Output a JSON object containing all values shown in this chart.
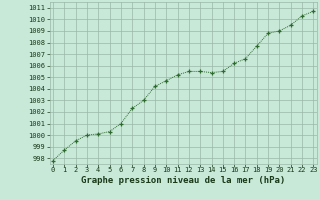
{
  "x": [
    0,
    1,
    2,
    3,
    4,
    5,
    6,
    7,
    8,
    9,
    10,
    11,
    12,
    13,
    14,
    15,
    16,
    17,
    18,
    19,
    20,
    21,
    22,
    23
  ],
  "y": [
    997.8,
    998.7,
    999.5,
    1000.0,
    1000.1,
    1000.3,
    1001.0,
    1002.3,
    1003.0,
    1004.2,
    1004.7,
    1005.2,
    1005.5,
    1005.5,
    1005.4,
    1005.5,
    1006.2,
    1006.6,
    1007.7,
    1008.8,
    1009.0,
    1009.5,
    1010.3,
    1010.7
  ],
  "xlim": [
    -0.3,
    23.3
  ],
  "ylim": [
    997.5,
    1011.5
  ],
  "yticks": [
    998,
    999,
    1000,
    1001,
    1002,
    1003,
    1004,
    1005,
    1006,
    1007,
    1008,
    1009,
    1010,
    1011
  ],
  "xticks": [
    0,
    1,
    2,
    3,
    4,
    5,
    6,
    7,
    8,
    9,
    10,
    11,
    12,
    13,
    14,
    15,
    16,
    17,
    18,
    19,
    20,
    21,
    22,
    23
  ],
  "line_color": "#2d6a2d",
  "marker": "+",
  "bg_color": "#c8e8d8",
  "grid_color": "#9ab8a8",
  "xlabel": "Graphe pression niveau de la mer (hPa)",
  "xlabel_color": "#1a3a1a",
  "tick_label_color": "#1a3a1a",
  "xlabel_fontsize": 6.5,
  "tick_fontsize": 5.0
}
